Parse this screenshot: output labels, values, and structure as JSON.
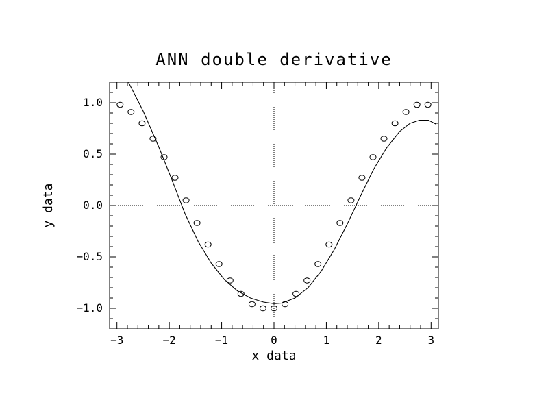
{
  "chart_data": {
    "type": "scatter",
    "title": "ANN double derivative",
    "xlabel": "x data",
    "ylabel": "y data",
    "xlim": [
      -3.14,
      3.14
    ],
    "ylim": [
      -1.2,
      1.2
    ],
    "x_ticks": [
      -3,
      -2,
      -1,
      0,
      1,
      2,
      3
    ],
    "y_ticks": [
      -1.0,
      -0.5,
      0.0,
      0.5,
      1.0
    ],
    "x_tick_labels": [
      "−3",
      "−2",
      "−1",
      "0",
      "1",
      "2",
      "3"
    ],
    "y_tick_labels": [
      "−1.0",
      "−0.5",
      "0.0",
      "0.5",
      "1.0"
    ],
    "reference_lines": {
      "x": 0,
      "y": 0
    },
    "grid": false,
    "series": [
      {
        "kind": "markers",
        "marker": "circle",
        "x": [
          -2.94,
          -2.73,
          -2.52,
          -2.31,
          -2.1,
          -1.89,
          -1.68,
          -1.47,
          -1.26,
          -1.05,
          -0.84,
          -0.63,
          -0.42,
          -0.21,
          0.0,
          0.21,
          0.42,
          0.63,
          0.84,
          1.05,
          1.26,
          1.47,
          1.68,
          1.89,
          2.1,
          2.31,
          2.52,
          2.73,
          2.94
        ],
        "y": [
          0.98,
          0.91,
          0.8,
          0.65,
          0.47,
          0.27,
          0.05,
          -0.17,
          -0.38,
          -0.57,
          -0.73,
          -0.86,
          -0.96,
          -1.0,
          -1.0,
          -0.96,
          -0.86,
          -0.73,
          -0.57,
          -0.38,
          -0.17,
          0.05,
          0.27,
          0.47,
          0.65,
          0.8,
          0.91,
          0.98,
          0.98
        ]
      },
      {
        "kind": "line",
        "x": [
          -2.78,
          -2.5,
          -2.2,
          -1.95,
          -1.7,
          -1.45,
          -1.2,
          -0.95,
          -0.7,
          -0.45,
          -0.2,
          0.0,
          0.15,
          0.4,
          0.65,
          0.9,
          1.15,
          1.4,
          1.65,
          1.9,
          2.15,
          2.4,
          2.6,
          2.78,
          2.95,
          3.1
        ],
        "y": [
          1.2,
          0.92,
          0.57,
          0.25,
          -0.08,
          -0.35,
          -0.56,
          -0.72,
          -0.83,
          -0.9,
          -0.94,
          -0.955,
          -0.95,
          -0.9,
          -0.8,
          -0.64,
          -0.43,
          -0.18,
          0.09,
          0.35,
          0.56,
          0.72,
          0.8,
          0.83,
          0.83,
          0.79
        ]
      }
    ]
  }
}
